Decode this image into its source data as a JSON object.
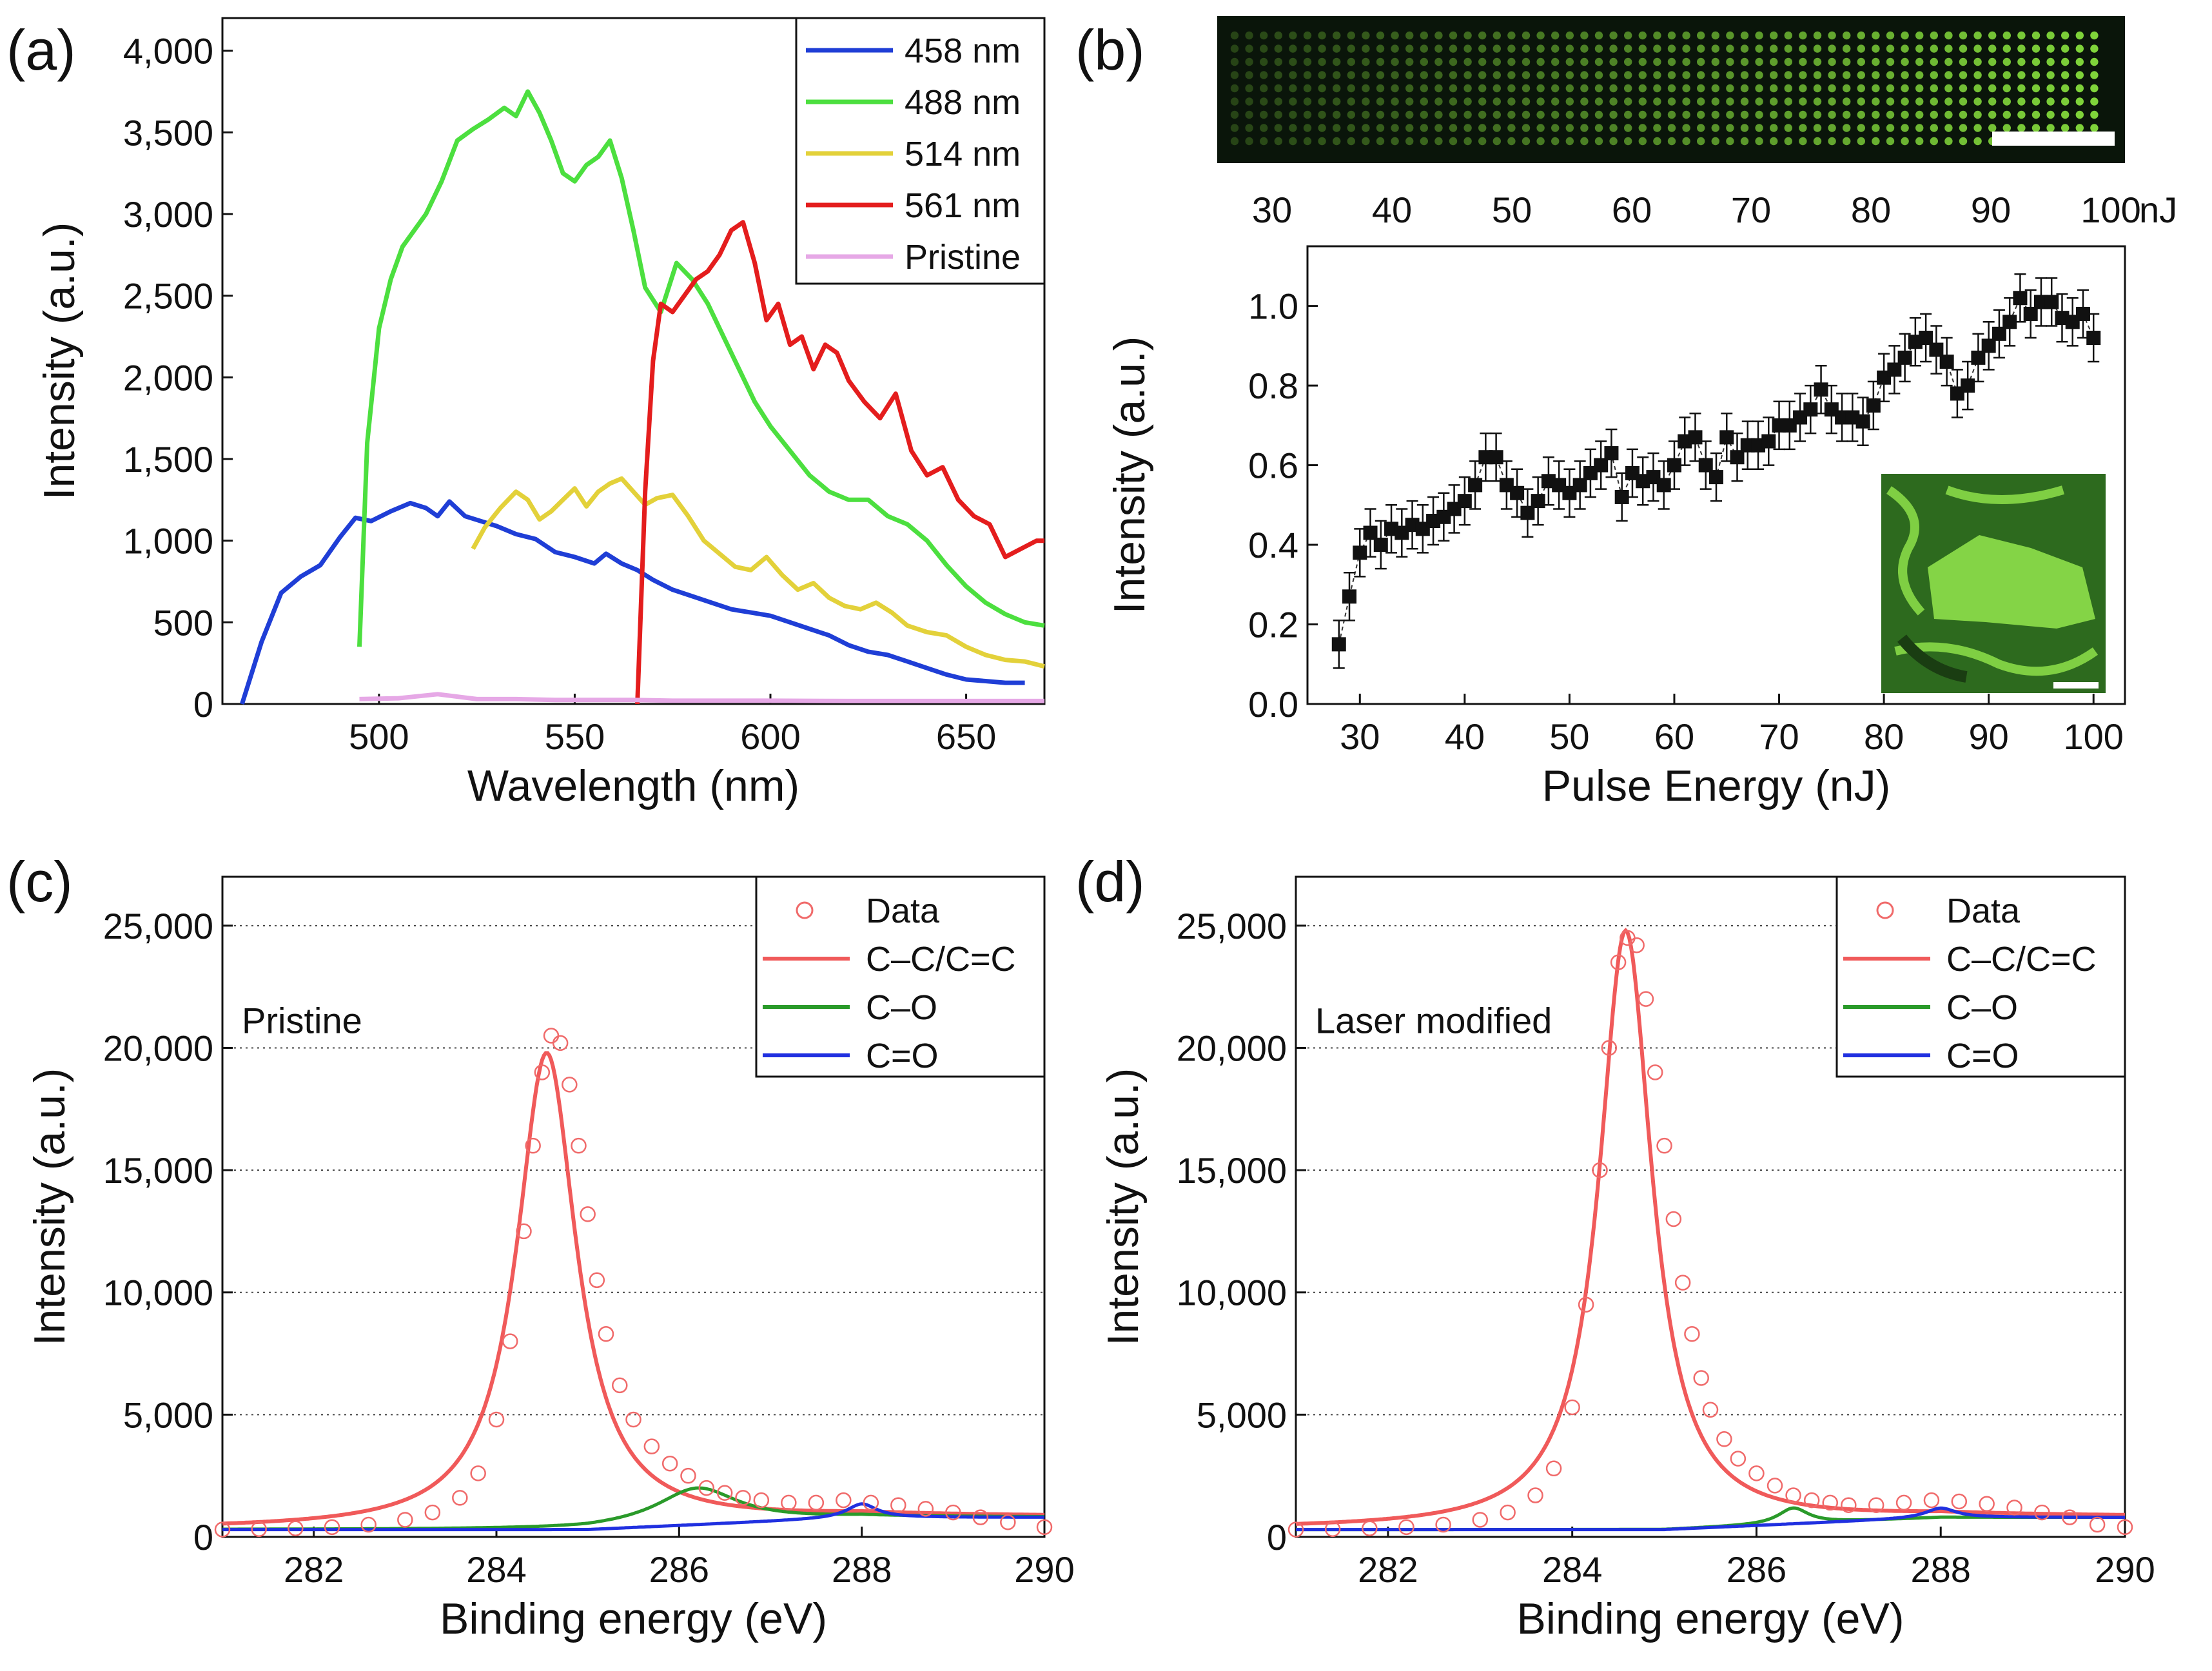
{
  "figure": {
    "panel_letters": [
      "(a)",
      "(b)",
      "(c)",
      "(d)"
    ],
    "strip_unit": "nJ",
    "strip_ticks": [
      "30",
      "40",
      "50",
      "60",
      "70",
      "80",
      "90",
      "100"
    ],
    "colors": {
      "c458": "#1f3ed6",
      "c488": "#4cdf3f",
      "c514": "#e3d13a",
      "c561": "#e41d1d",
      "pristine": "#e6a8e6",
      "xps_data": "#f06a6a",
      "xps_cc": "#f05a5a",
      "xps_co": "#2a9a2a",
      "xps_c_o": "#2030e0",
      "marker": "#111111",
      "strip_bg": "#0a150a",
      "strip_dot": "#7fd43a",
      "inset_bg": "#2d6a1e",
      "inset_bright": "#8ee04a"
    }
  },
  "chart_data": [
    {
      "id": "a",
      "type": "line",
      "xlabel": "Wavelength (nm)",
      "ylabel": "Intensity (a.u.)",
      "xlim": [
        460,
        670
      ],
      "ylim": [
        0,
        4200
      ],
      "xticks": [
        500,
        550,
        600,
        650
      ],
      "yticks": [
        0,
        500,
        1000,
        1500,
        2000,
        2500,
        3000,
        3500,
        4000
      ],
      "ytick_labels": [
        "0",
        "500",
        "1,000",
        "1,500",
        "2,000",
        "2,500",
        "3,000",
        "3,500",
        "4,000"
      ],
      "legend": [
        "458 nm",
        "488 nm",
        "514 nm",
        "561 nm",
        "Pristine"
      ],
      "series": [
        {
          "name": "458 nm",
          "color": "#1f3ed6",
          "x": [
            465,
            470,
            475,
            480,
            485,
            490,
            494,
            498,
            503,
            508,
            512,
            515,
            518,
            522,
            526,
            530,
            535,
            540,
            545,
            550,
            555,
            558,
            562,
            566,
            570,
            575,
            580,
            585,
            590,
            595,
            600,
            605,
            610,
            615,
            620,
            625,
            630,
            635,
            640,
            645,
            650,
            655,
            660,
            665
          ],
          "y": [
            0,
            380,
            680,
            780,
            850,
            1020,
            1140,
            1120,
            1180,
            1230,
            1200,
            1150,
            1240,
            1150,
            1120,
            1090,
            1040,
            1010,
            930,
            900,
            860,
            920,
            860,
            820,
            760,
            700,
            660,
            620,
            580,
            560,
            540,
            500,
            460,
            420,
            360,
            320,
            300,
            260,
            220,
            180,
            150,
            140,
            130,
            130
          ]
        },
        {
          "name": "488 nm",
          "color": "#4cdf3f",
          "x": [
            495,
            497,
            500,
            503,
            506,
            509,
            512,
            516,
            520,
            524,
            528,
            532,
            535,
            538,
            541,
            544,
            547,
            550,
            553,
            556,
            559,
            562,
            565,
            568,
            572,
            576,
            580,
            584,
            588,
            592,
            596,
            600,
            605,
            610,
            615,
            620,
            625,
            630,
            635,
            640,
            645,
            650,
            655,
            660,
            665,
            670
          ],
          "y": [
            350,
            1600,
            2300,
            2600,
            2800,
            2900,
            3000,
            3200,
            3450,
            3520,
            3580,
            3650,
            3600,
            3750,
            3620,
            3450,
            3250,
            3200,
            3300,
            3350,
            3450,
            3220,
            2900,
            2550,
            2400,
            2700,
            2600,
            2450,
            2250,
            2050,
            1850,
            1700,
            1550,
            1400,
            1300,
            1250,
            1250,
            1150,
            1100,
            1000,
            850,
            720,
            620,
            550,
            500,
            480
          ]
        },
        {
          "name": "514 nm",
          "color": "#e3d13a",
          "x": [
            524,
            527,
            531,
            535,
            538,
            541,
            544,
            547,
            550,
            553,
            556,
            559,
            562,
            565,
            568,
            571,
            575,
            579,
            583,
            587,
            591,
            595,
            599,
            603,
            607,
            611,
            615,
            619,
            623,
            627,
            631,
            635,
            640,
            645,
            650,
            655,
            660,
            665,
            670
          ],
          "y": [
            950,
            1080,
            1200,
            1300,
            1250,
            1130,
            1180,
            1250,
            1320,
            1210,
            1300,
            1350,
            1380,
            1300,
            1220,
            1260,
            1280,
            1150,
            1000,
            920,
            840,
            820,
            900,
            790,
            700,
            740,
            650,
            600,
            580,
            620,
            560,
            480,
            440,
            420,
            350,
            300,
            270,
            260,
            230
          ]
        },
        {
          "name": "561 nm",
          "color": "#e41d1d",
          "x": [
            566,
            568,
            570,
            572,
            575,
            578,
            581,
            584,
            587,
            590,
            593,
            596,
            599,
            602,
            605,
            608,
            611,
            614,
            617,
            620,
            624,
            628,
            632,
            636,
            640,
            644,
            648,
            652,
            656,
            660,
            664,
            668,
            670
          ],
          "y": [
            0,
            1300,
            2100,
            2450,
            2400,
            2500,
            2600,
            2650,
            2750,
            2900,
            2950,
            2700,
            2350,
            2450,
            2200,
            2250,
            2050,
            2200,
            2150,
            1980,
            1850,
            1750,
            1900,
            1550,
            1400,
            1450,
            1250,
            1150,
            1100,
            900,
            950,
            1000,
            1000
          ]
        },
        {
          "name": "Pristine",
          "color": "#e6a8e6",
          "x": [
            495,
            505,
            515,
            525,
            535,
            545,
            555,
            565,
            575,
            585,
            600,
            620,
            640,
            660,
            670
          ],
          "y": [
            30,
            35,
            60,
            30,
            30,
            25,
            25,
            25,
            20,
            20,
            20,
            18,
            18,
            18,
            18
          ]
        }
      ]
    },
    {
      "id": "b",
      "type": "scatter",
      "xlabel": "Pulse Energy (nJ)",
      "ylabel": "Intensity (a.u.)",
      "xlim": [
        25,
        103
      ],
      "ylim": [
        0,
        1.15
      ],
      "xticks": [
        30,
        40,
        50,
        60,
        70,
        80,
        90,
        100
      ],
      "yticks": [
        0.0,
        0.2,
        0.4,
        0.6,
        0.8,
        1.0
      ],
      "ytick_labels": [
        "0.0",
        "0.2",
        "0.4",
        "0.6",
        "0.8",
        "1.0"
      ],
      "x": [
        28,
        29,
        30,
        31,
        32,
        33,
        34,
        35,
        36,
        37,
        38,
        39,
        40,
        41,
        42,
        43,
        44,
        45,
        46,
        47,
        48,
        49,
        50,
        51,
        52,
        53,
        54,
        55,
        56,
        57,
        58,
        59,
        60,
        61,
        62,
        63,
        64,
        65,
        66,
        67,
        68,
        69,
        70,
        71,
        72,
        73,
        74,
        75,
        76,
        77,
        78,
        79,
        80,
        81,
        82,
        83,
        84,
        85,
        86,
        87,
        88,
        89,
        90,
        91,
        92,
        93,
        94,
        95,
        96,
        97,
        98,
        99,
        100
      ],
      "y": [
        0.15,
        0.27,
        0.38,
        0.43,
        0.4,
        0.44,
        0.43,
        0.45,
        0.44,
        0.46,
        0.47,
        0.49,
        0.51,
        0.55,
        0.62,
        0.62,
        0.55,
        0.53,
        0.48,
        0.51,
        0.56,
        0.55,
        0.53,
        0.55,
        0.58,
        0.6,
        0.63,
        0.52,
        0.58,
        0.56,
        0.57,
        0.55,
        0.6,
        0.66,
        0.67,
        0.6,
        0.57,
        0.67,
        0.62,
        0.65,
        0.65,
        0.66,
        0.7,
        0.7,
        0.72,
        0.74,
        0.79,
        0.74,
        0.72,
        0.72,
        0.71,
        0.75,
        0.82,
        0.84,
        0.87,
        0.91,
        0.92,
        0.89,
        0.86,
        0.78,
        0.8,
        0.87,
        0.9,
        0.93,
        0.96,
        1.02,
        0.98,
        1.01,
        1.01,
        0.97,
        0.96,
        0.98,
        0.92
      ],
      "error": 0.06,
      "inset": "fluorescence image"
    },
    {
      "id": "c",
      "type": "line",
      "annotation": "Pristine",
      "xlabel": "Binding energy (eV)",
      "ylabel": "Intensity (a.u.)",
      "xlim": [
        281,
        290
      ],
      "ylim": [
        0,
        27000
      ],
      "xticks": [
        282,
        284,
        286,
        288,
        290
      ],
      "yticks": [
        0,
        5000,
        10000,
        15000,
        20000,
        25000
      ],
      "ytick_labels": [
        "0",
        "5,000",
        "10,000",
        "15,000",
        "20,000",
        "25,000"
      ],
      "legend": [
        "Data",
        "C–C/C=C",
        "C–O",
        "C=O"
      ],
      "data_points": {
        "x": [
          281.0,
          281.4,
          281.8,
          282.2,
          282.6,
          283.0,
          283.3,
          283.6,
          283.8,
          284.0,
          284.15,
          284.3,
          284.4,
          284.5,
          284.6,
          284.7,
          284.8,
          284.9,
          285.0,
          285.1,
          285.2,
          285.35,
          285.5,
          285.7,
          285.9,
          286.1,
          286.3,
          286.5,
          286.7,
          286.9,
          287.2,
          287.5,
          287.8,
          288.1,
          288.4,
          288.7,
          289.0,
          289.3,
          289.6,
          290.0
        ],
        "y": [
          300,
          320,
          350,
          400,
          500,
          700,
          1000,
          1600,
          2600,
          4800,
          8000,
          12500,
          16000,
          19000,
          20500,
          20200,
          18500,
          16000,
          13200,
          10500,
          8300,
          6200,
          4800,
          3700,
          3000,
          2500,
          2000,
          1800,
          1600,
          1500,
          1400,
          1400,
          1500,
          1400,
          1300,
          1150,
          1000,
          800,
          600,
          400
        ]
      },
      "series": [
        {
          "name": "C–C/C=C",
          "color": "#f05a5a",
          "center": 284.55,
          "amplitude": 19500,
          "width": 0.4,
          "baseline": 300,
          "baseline_end": 800
        },
        {
          "name": "C–O",
          "color": "#2a9a2a",
          "center": 286.2,
          "amplitude": 1500,
          "width": 0.55,
          "baseline": 300,
          "baseline_end": 800
        },
        {
          "name": "C=O",
          "color": "#2030e0",
          "center": 288.0,
          "amplitude": 550,
          "width": 0.2,
          "baseline": 300,
          "baseline_end": 800
        }
      ]
    },
    {
      "id": "d",
      "type": "line",
      "annotation": "Laser modified",
      "xlabel": "Binding energy (eV)",
      "ylabel": "Intensity (a.u.)",
      "xlim": [
        281,
        290
      ],
      "ylim": [
        0,
        27000
      ],
      "xticks": [
        282,
        284,
        286,
        288,
        290
      ],
      "yticks": [
        0,
        5000,
        10000,
        15000,
        20000,
        25000
      ],
      "ytick_labels": [
        "0",
        "5,000",
        "10,000",
        "15,000",
        "20,000",
        "25,000"
      ],
      "legend": [
        "Data",
        "C–C/C=C",
        "C–O",
        "C=O"
      ],
      "data_points": {
        "x": [
          281.0,
          281.4,
          281.8,
          282.2,
          282.6,
          283.0,
          283.3,
          283.6,
          283.8,
          284.0,
          284.15,
          284.3,
          284.4,
          284.5,
          284.6,
          284.7,
          284.8,
          284.9,
          285.0,
          285.1,
          285.2,
          285.3,
          285.4,
          285.5,
          285.65,
          285.8,
          286.0,
          286.2,
          286.4,
          286.6,
          286.8,
          287.0,
          287.3,
          287.6,
          287.9,
          288.2,
          288.5,
          288.8,
          289.1,
          289.4,
          289.7,
          290.0
        ],
        "y": [
          300,
          320,
          350,
          400,
          500,
          700,
          1000,
          1700,
          2800,
          5300,
          9500,
          15000,
          20000,
          23500,
          24500,
          24200,
          22000,
          19000,
          16000,
          13000,
          10400,
          8300,
          6500,
          5200,
          4000,
          3200,
          2600,
          2100,
          1700,
          1500,
          1400,
          1300,
          1300,
          1400,
          1500,
          1450,
          1350,
          1200,
          1000,
          800,
          500,
          400
        ]
      },
      "series": [
        {
          "name": "C–C/C=C",
          "color": "#f05a5a",
          "center": 284.58,
          "amplitude": 24500,
          "width": 0.35,
          "baseline": 300,
          "baseline_end": 800
        },
        {
          "name": "C–O",
          "color": "#2a9a2a",
          "center": 286.4,
          "amplitude": 650,
          "width": 0.2,
          "baseline": 300,
          "baseline_end": 800
        },
        {
          "name": "C=O",
          "color": "#2030e0",
          "center": 288.0,
          "amplitude": 380,
          "width": 0.2,
          "baseline": 300,
          "baseline_end": 800
        }
      ]
    }
  ]
}
